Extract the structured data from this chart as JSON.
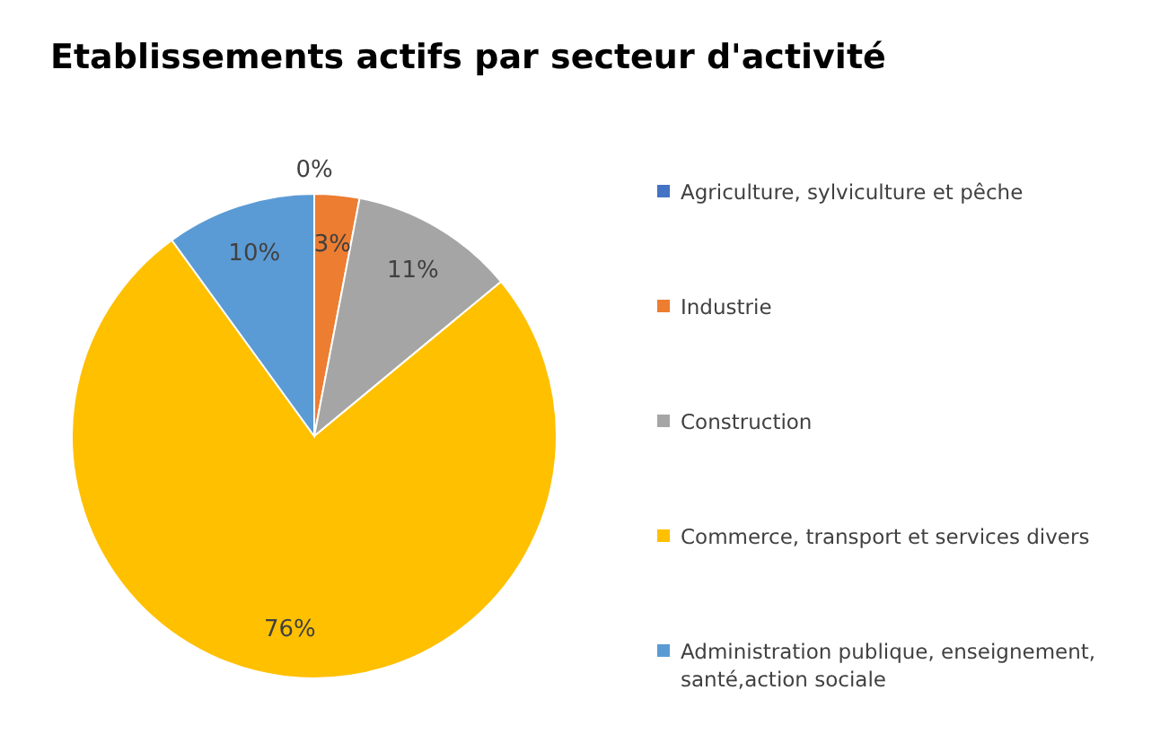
{
  "chart_data": {
    "type": "pie",
    "title": "Etablissements actifs par secteur d'activité",
    "categories": [
      "Agriculture, sylviculture et pêche",
      "Industrie",
      "Construction",
      "Commerce, transport et services divers",
      "Administration publique, enseignement, santé,action sociale"
    ],
    "values": [
      0,
      3,
      11,
      76,
      10
    ],
    "value_labels": [
      "0%",
      "3%",
      "11%",
      "76%",
      "10%"
    ],
    "colors": [
      "#4472c4",
      "#ed7d31",
      "#a5a5a5",
      "#ffc000",
      "#5b9bd5"
    ],
    "legend": "right"
  }
}
